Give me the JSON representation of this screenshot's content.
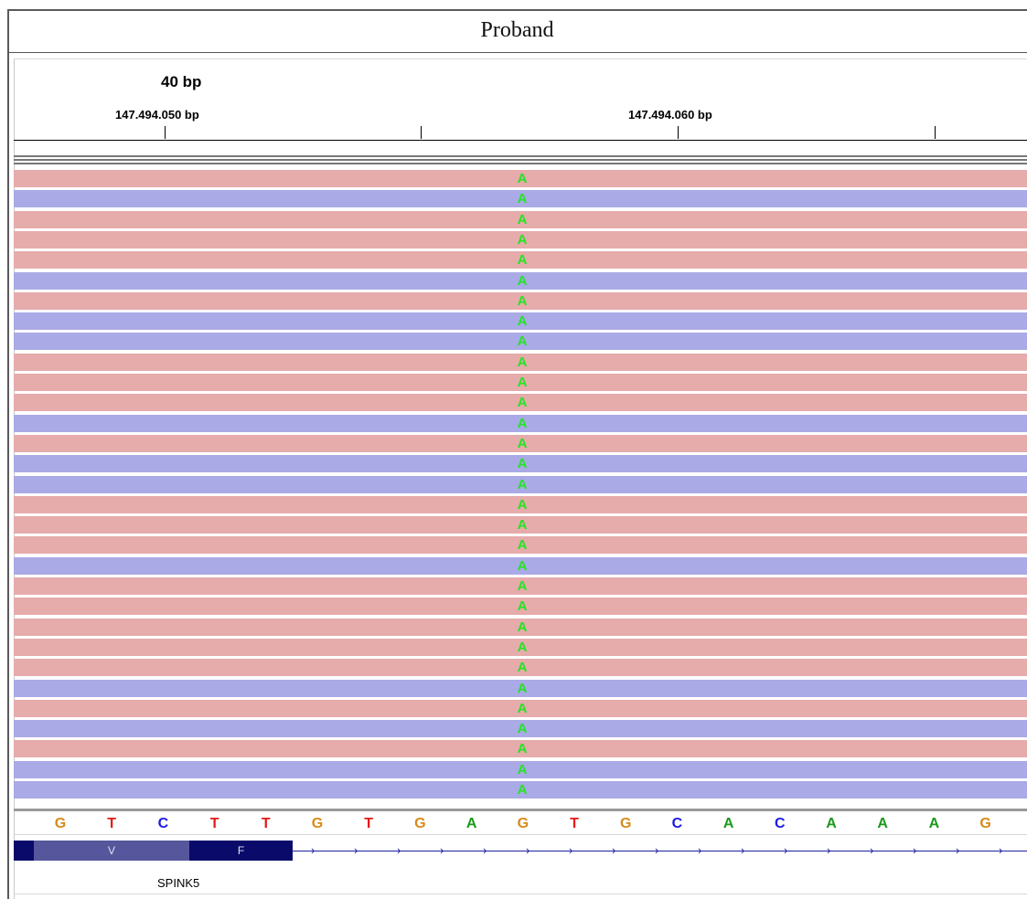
{
  "panel": {
    "title": "Proband"
  },
  "ruler": {
    "span_label": "40 bp",
    "positions": [
      "147.494.050 bp",
      "147.494.060 bp"
    ]
  },
  "reads": {
    "variant_base": "A",
    "variant_color": "#22e622",
    "strands": [
      "pink",
      "blue",
      "pink",
      "pink",
      "pink",
      "blue",
      "pink",
      "blue",
      "blue",
      "pink",
      "pink",
      "pink",
      "blue",
      "pink",
      "blue",
      "blue",
      "pink",
      "pink",
      "pink",
      "blue",
      "pink",
      "pink",
      "pink",
      "pink",
      "pink",
      "blue",
      "pink",
      "blue",
      "pink",
      "blue",
      "blue"
    ],
    "colors": {
      "forward": "#e6abab",
      "reverse": "#aaaae6"
    }
  },
  "sequence": {
    "bases": [
      "G",
      "T",
      "C",
      "T",
      "T",
      "G",
      "T",
      "G",
      "A",
      "G",
      "T",
      "G",
      "C",
      "A",
      "C",
      "A",
      "A",
      "A",
      "G"
    ],
    "colors": {
      "A": "#1a9a1a",
      "C": "#1a1ae6",
      "G": "#d88a1a",
      "T": "#e61a1a"
    }
  },
  "gene": {
    "name": "SPINK5",
    "exon_labels": [
      "V",
      "F"
    ],
    "strand_arrow": "›"
  }
}
